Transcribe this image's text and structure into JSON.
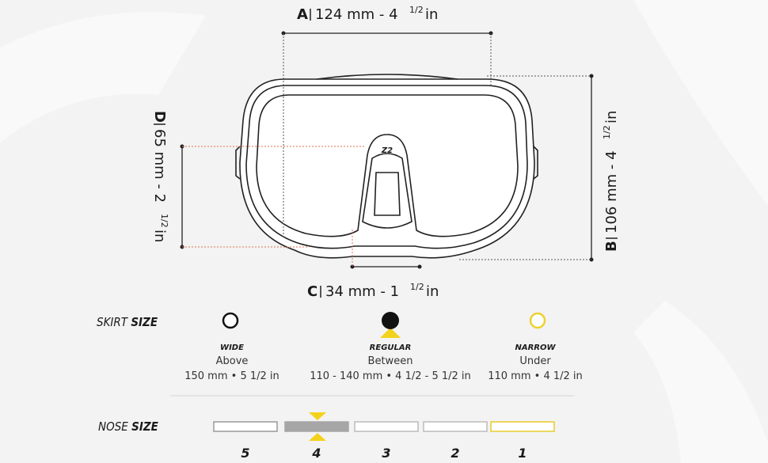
{
  "dimensions": {
    "a": {
      "letter": "A",
      "value": "124 mm - 4",
      "fraction": "1/2",
      "unit": "in"
    },
    "b": {
      "letter": "B",
      "value": "106 mm - 4",
      "fraction": "1/2",
      "unit": "in"
    },
    "c": {
      "letter": "C",
      "value": "34 mm - 1",
      "fraction": "1/2",
      "unit": "in"
    },
    "d": {
      "letter": "D",
      "value": "65 mm - 2",
      "fraction": "1/2",
      "unit": "in"
    },
    "logo": "Z2"
  },
  "skirt_size": {
    "title": "SKIRT",
    "title_bold": "SIZE",
    "options": [
      {
        "name": "WIDE",
        "relation": "Above",
        "measure": "150 mm • 5 1/2 in"
      },
      {
        "name": "REGULAR",
        "relation": "Between",
        "measure": "110 - 140 mm • 4 1/2 - 5 1/2 in"
      },
      {
        "name": "NARROW",
        "relation": "Under",
        "measure": "110 mm • 4 1/2 in"
      }
    ]
  },
  "nose_size": {
    "title": "NOSE",
    "title_bold": "SIZE",
    "sizes": [
      "5",
      "4",
      "3",
      "2",
      "1"
    ]
  }
}
